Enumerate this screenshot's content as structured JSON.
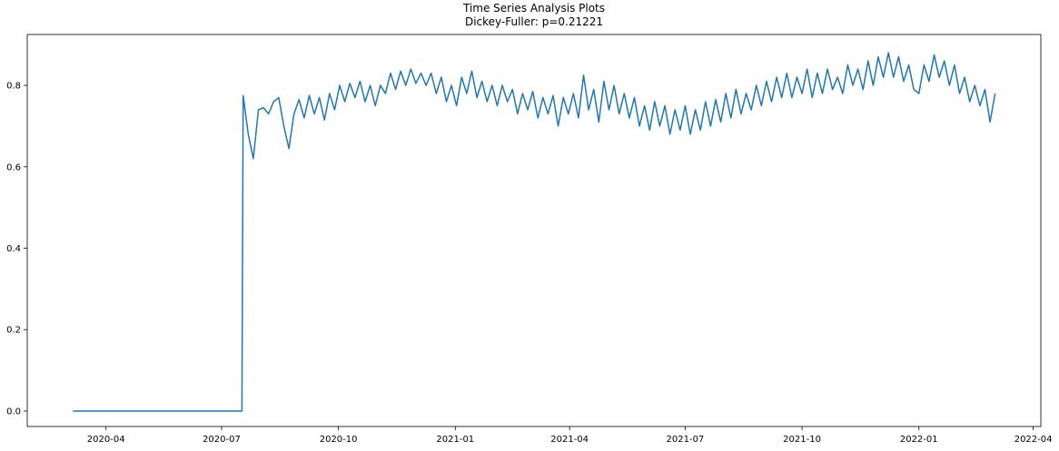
{
  "chart_data": {
    "type": "line",
    "title": "Time Series Analysis Plots",
    "subtitle": "Dickey-Fuller: p=0.21221",
    "color": "#1f77b4",
    "x": [
      "2020-03-06",
      "2020-07-17",
      "2020-07-18",
      "2020-07-22",
      "2020-07-26",
      "2020-07-30",
      "2020-08-03",
      "2020-08-07",
      "2020-08-11",
      "2020-08-15",
      "2020-08-19",
      "2020-08-23",
      "2020-08-27",
      "2020-08-31",
      "2020-09-04",
      "2020-09-08",
      "2020-09-12",
      "2020-09-16",
      "2020-09-20",
      "2020-09-24",
      "2020-09-28",
      "2020-10-02",
      "2020-10-06",
      "2020-10-10",
      "2020-10-14",
      "2020-10-18",
      "2020-10-22",
      "2020-10-26",
      "2020-10-30",
      "2020-11-03",
      "2020-11-07",
      "2020-11-11",
      "2020-11-15",
      "2020-11-19",
      "2020-11-23",
      "2020-11-27",
      "2020-12-01",
      "2020-12-05",
      "2020-12-09",
      "2020-12-13",
      "2020-12-17",
      "2020-12-21",
      "2020-12-25",
      "2020-12-29",
      "2021-01-02",
      "2021-01-06",
      "2021-01-10",
      "2021-01-14",
      "2021-01-18",
      "2021-01-22",
      "2021-01-26",
      "2021-01-30",
      "2021-02-03",
      "2021-02-07",
      "2021-02-11",
      "2021-02-15",
      "2021-02-19",
      "2021-02-23",
      "2021-02-27",
      "2021-03-03",
      "2021-03-07",
      "2021-03-11",
      "2021-03-15",
      "2021-03-19",
      "2021-03-23",
      "2021-03-27",
      "2021-03-31",
      "2021-04-04",
      "2021-04-08",
      "2021-04-12",
      "2021-04-16",
      "2021-04-20",
      "2021-04-24",
      "2021-04-28",
      "2021-05-02",
      "2021-05-06",
      "2021-05-10",
      "2021-05-14",
      "2021-05-18",
      "2021-05-22",
      "2021-05-26",
      "2021-05-30",
      "2021-06-03",
      "2021-06-07",
      "2021-06-11",
      "2021-06-15",
      "2021-06-19",
      "2021-06-23",
      "2021-06-27",
      "2021-07-01",
      "2021-07-05",
      "2021-07-09",
      "2021-07-13",
      "2021-07-17",
      "2021-07-21",
      "2021-07-25",
      "2021-07-29",
      "2021-08-02",
      "2021-08-06",
      "2021-08-10",
      "2021-08-14",
      "2021-08-18",
      "2021-08-22",
      "2021-08-26",
      "2021-08-30",
      "2021-09-03",
      "2021-09-07",
      "2021-09-11",
      "2021-09-15",
      "2021-09-19",
      "2021-09-23",
      "2021-09-27",
      "2021-10-01",
      "2021-10-05",
      "2021-10-09",
      "2021-10-13",
      "2021-10-17",
      "2021-10-21",
      "2021-10-25",
      "2021-10-29",
      "2021-11-02",
      "2021-11-06",
      "2021-11-10",
      "2021-11-14",
      "2021-11-18",
      "2021-11-22",
      "2021-11-26",
      "2021-11-30",
      "2021-12-04",
      "2021-12-08",
      "2021-12-12",
      "2021-12-16",
      "2021-12-20",
      "2021-12-24",
      "2021-12-28",
      "2022-01-01",
      "2022-01-05",
      "2022-01-09",
      "2022-01-13",
      "2022-01-17",
      "2022-01-21",
      "2022-01-25",
      "2022-01-29",
      "2022-02-02",
      "2022-02-06",
      "2022-02-10",
      "2022-02-14",
      "2022-02-18",
      "2022-02-22",
      "2022-02-26",
      "2022-03-02"
    ],
    "values": [
      0,
      0,
      0.775,
      0.68,
      0.62,
      0.74,
      0.745,
      0.73,
      0.76,
      0.77,
      0.7,
      0.645,
      0.73,
      0.765,
      0.72,
      0.775,
      0.73,
      0.77,
      0.715,
      0.78,
      0.74,
      0.8,
      0.76,
      0.805,
      0.77,
      0.81,
      0.76,
      0.8,
      0.75,
      0.8,
      0.78,
      0.83,
      0.79,
      0.835,
      0.8,
      0.84,
      0.805,
      0.83,
      0.8,
      0.83,
      0.78,
      0.82,
      0.76,
      0.8,
      0.75,
      0.82,
      0.78,
      0.835,
      0.77,
      0.81,
      0.76,
      0.8,
      0.75,
      0.8,
      0.76,
      0.79,
      0.73,
      0.78,
      0.74,
      0.785,
      0.72,
      0.77,
      0.73,
      0.775,
      0.7,
      0.77,
      0.73,
      0.78,
      0.72,
      0.825,
      0.74,
      0.79,
      0.71,
      0.81,
      0.74,
      0.8,
      0.73,
      0.78,
      0.72,
      0.77,
      0.7,
      0.75,
      0.69,
      0.76,
      0.7,
      0.75,
      0.68,
      0.74,
      0.69,
      0.75,
      0.68,
      0.74,
      0.69,
      0.76,
      0.7,
      0.765,
      0.71,
      0.78,
      0.72,
      0.79,
      0.73,
      0.78,
      0.74,
      0.8,
      0.75,
      0.81,
      0.76,
      0.82,
      0.77,
      0.83,
      0.77,
      0.82,
      0.78,
      0.84,
      0.77,
      0.83,
      0.78,
      0.84,
      0.79,
      0.82,
      0.78,
      0.85,
      0.8,
      0.84,
      0.79,
      0.86,
      0.8,
      0.87,
      0.82,
      0.88,
      0.82,
      0.87,
      0.81,
      0.85,
      0.79,
      0.78,
      0.85,
      0.81,
      0.875,
      0.82,
      0.86,
      0.8,
      0.85,
      0.78,
      0.82,
      0.76,
      0.8,
      0.75,
      0.79,
      0.71,
      0.78
    ],
    "xlim": [
      "2020-01-30",
      "2022-04-07"
    ],
    "xticks": [
      {
        "value": "2020-04-01",
        "label": "2020-04"
      },
      {
        "value": "2020-07-01",
        "label": "2020-07"
      },
      {
        "value": "2020-10-01",
        "label": "2020-10"
      },
      {
        "value": "2021-01-01",
        "label": "2021-01"
      },
      {
        "value": "2021-04-01",
        "label": "2021-04"
      },
      {
        "value": "2021-07-01",
        "label": "2021-07"
      },
      {
        "value": "2021-10-01",
        "label": "2021-10"
      },
      {
        "value": "2022-01-01",
        "label": "2022-01"
      },
      {
        "value": "2022-04-01",
        "label": "2022-04"
      }
    ],
    "ylim": [
      -0.038,
      0.925
    ],
    "yticks": [
      {
        "value": 0,
        "label": "0.0"
      },
      {
        "value": 0.2,
        "label": "0.2"
      },
      {
        "value": 0.4,
        "label": "0.4"
      },
      {
        "value": 0.6,
        "label": "0.6"
      },
      {
        "value": 0.8,
        "label": "0.8"
      }
    ],
    "grid": false
  }
}
